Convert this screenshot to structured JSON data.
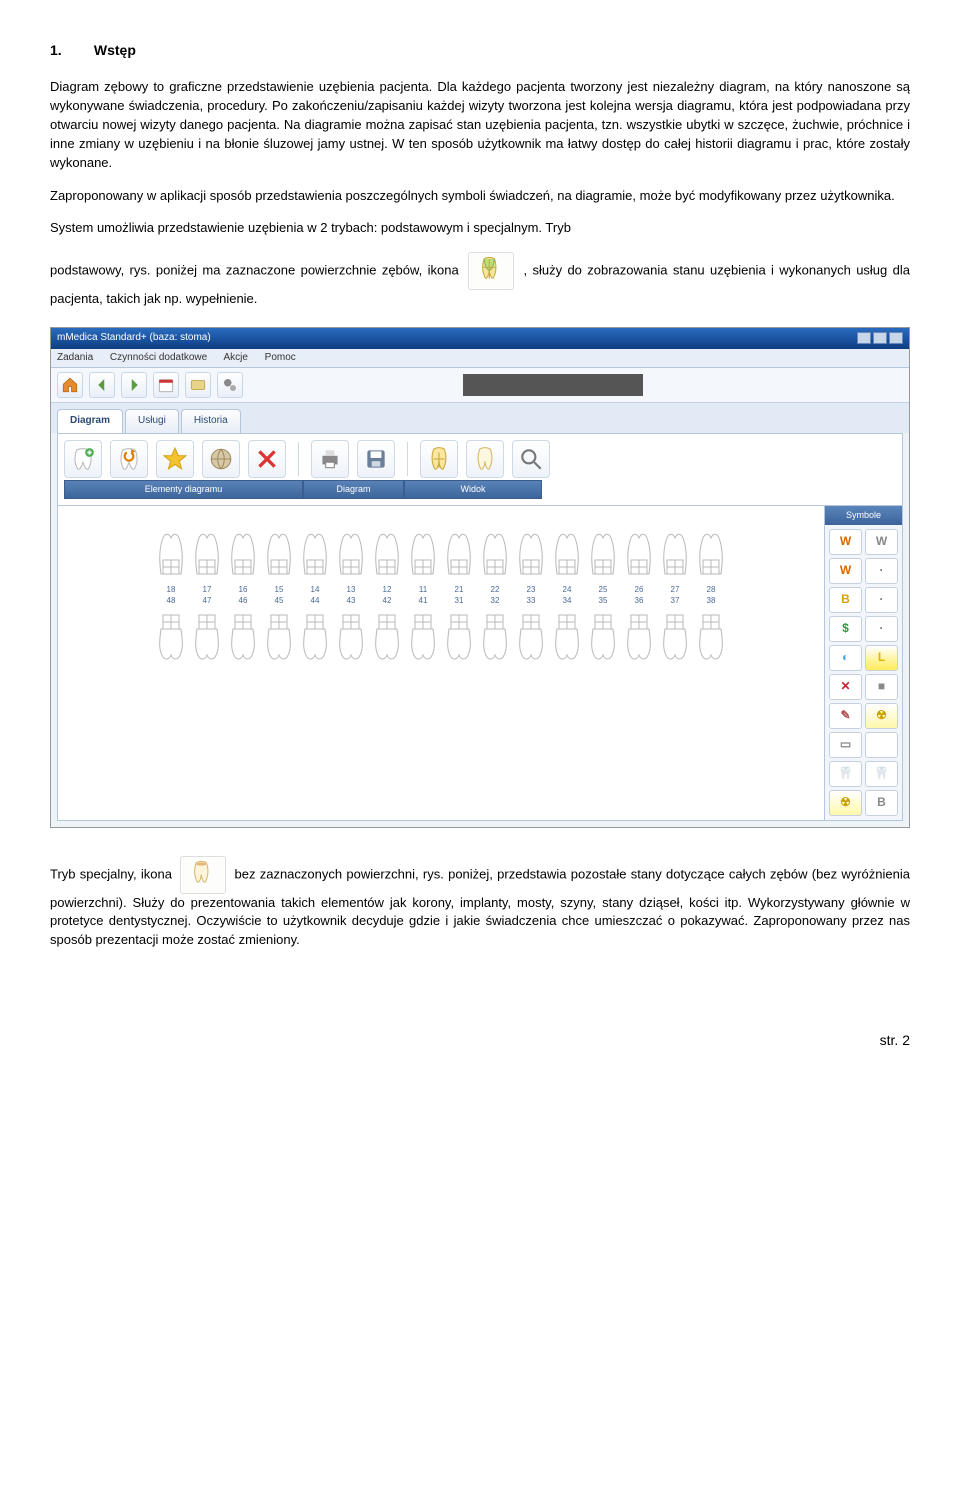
{
  "section": {
    "number": "1.",
    "title": "Wstęp"
  },
  "paragraphs": {
    "p1": "Diagram zębowy to graficzne przedstawienie uzębienia pacjenta. Dla każdego pacjenta tworzony jest niezależny diagram, na który nanoszone są wykonywane świadczenia, procedury. Po zakończeniu/zapisaniu każdej wizyty tworzona jest kolejna wersja diagramu, która jest podpowiadana przy otwarciu nowej wizyty danego pacjenta. Na diagramie można zapisać stan uzębienia pacjenta, tzn. wszystkie ubytki w szczęce, żuchwie, próchnice i inne zmiany w uzębieniu i na błonie śluzowej jamy ustnej. W ten sposób użytkownik ma łatwy dostęp do całej historii diagramu i prac, które zostały wykonane.",
    "p2": "Zaproponowany w aplikacji sposób przedstawienia poszczególnych symboli świadczeń, na diagramie, może być modyfikowany przez użytkownika.",
    "p3": "System umożliwia przedstawienie uzębienia w 2 trybach: podstawowym i specjalnym. Tryb",
    "p4a": "podstawowy, rys. poniżej ma zaznaczone powierzchnie zębów, ikona ",
    "p4b": ", służy do  zobrazowania stanu uzębienia i wykonanych usług dla pacjenta, takich jak np. wypełnienie.",
    "p5a": "Tryb specjalny, ikona ",
    "p5b": " bez zaznaczonych powierzchni, rys. poniżej, przedstawia pozostałe stany dotyczące całych zębów (bez wyróżnienia powierzchni).  Służy do prezentowania takich elementów jak korony, implanty, mosty, szyny, stany dziąseł, kości itp. Wykorzystywany głównie w protetyce dentystycznej. Oczywiście to użytkownik decyduje gdzie i jakie świadczenia chce umieszczać o pokazywać. Zaproponowany przez nas sposób prezentacji może zostać zmieniony."
  },
  "app": {
    "title": "mMedica Standard+ (baza: stoma)",
    "menu": [
      "Zadania",
      "Czynności dodatkowe",
      "Akcje",
      "Pomoc"
    ],
    "toolbar_icons": [
      "home-icon",
      "arrow-left-icon",
      "arrow-right-icon",
      "calendar-icon",
      "card-icon",
      "gears-icon"
    ],
    "tabs": [
      "Diagram",
      "Usługi",
      "Historia"
    ],
    "subtoolbar": {
      "group1": {
        "label": "Elementy diagramu",
        "icons": [
          "tooth-add-icon",
          "reset-icon",
          "star-icon",
          "globe-icon",
          "delete-icon"
        ]
      },
      "group2": {
        "label": "Diagram",
        "icons": [
          "print-icon",
          "save-icon"
        ]
      },
      "group3": {
        "label": "Widok",
        "icons": [
          "tooth-segmented-icon",
          "tooth-plain-icon",
          "zoom-icon"
        ]
      }
    },
    "side_title": "Symbole",
    "symbols": [
      {
        "txt": "W",
        "color": "#d36a00",
        "bg": "#fff"
      },
      {
        "txt": "W",
        "color": "#888",
        "bg": "#fff"
      },
      {
        "txt": "W",
        "color": "#d36a00",
        "bg": "#fff"
      },
      {
        "txt": "·",
        "color": "#777",
        "bg": "#fff"
      },
      {
        "txt": "B",
        "color": "#d8a300",
        "bg": "#fff"
      },
      {
        "txt": "·",
        "color": "#777",
        "bg": "#fff"
      },
      {
        "txt": "$",
        "color": "#2b9a3e",
        "bg": "#fff"
      },
      {
        "txt": "·",
        "color": "#777",
        "bg": "#fff"
      },
      {
        "txt": "◐",
        "color": "#4fa7d8",
        "bg": "#fff"
      },
      {
        "txt": "L",
        "color": "#e0b400",
        "bg": "#ffec57"
      },
      {
        "txt": "✕",
        "color": "#c23",
        "bg": "#fff"
      },
      {
        "txt": "■",
        "color": "#888",
        "bg": "#fff"
      },
      {
        "txt": "✎",
        "color": "#b05050",
        "bg": "#fff"
      },
      {
        "txt": "☢",
        "color": "#caa200",
        "bg": "#fff8aa"
      },
      {
        "txt": "▭",
        "color": "#888",
        "bg": "#fff"
      },
      {
        "txt": "",
        "color": "#888",
        "bg": "#fff"
      },
      {
        "txt": "🦷",
        "color": "#6fb6e0",
        "bg": "#fff"
      },
      {
        "txt": "🦷",
        "color": "#d46fb4",
        "bg": "#fff"
      },
      {
        "txt": "☢",
        "color": "#caa200",
        "bg": "#fff8aa"
      },
      {
        "txt": "B",
        "color": "#888",
        "bg": "#fff"
      }
    ],
    "upper_nums": [
      "18",
      "17",
      "16",
      "15",
      "14",
      "13",
      "12",
      "11",
      "21",
      "22",
      "23",
      "24",
      "25",
      "26",
      "27",
      "28"
    ],
    "lower_nums": [
      "48",
      "47",
      "46",
      "45",
      "44",
      "43",
      "42",
      "41",
      "31",
      "32",
      "33",
      "34",
      "35",
      "36",
      "37",
      "38"
    ]
  },
  "footer": "str. 2",
  "colors": {
    "link": "#2b4a73",
    "header_grad_a": "#2a6bbf",
    "header_grad_b": "#0d3d82",
    "tooth_stroke": "#b8b8b8",
    "tooth_fill": "#ffffff"
  }
}
